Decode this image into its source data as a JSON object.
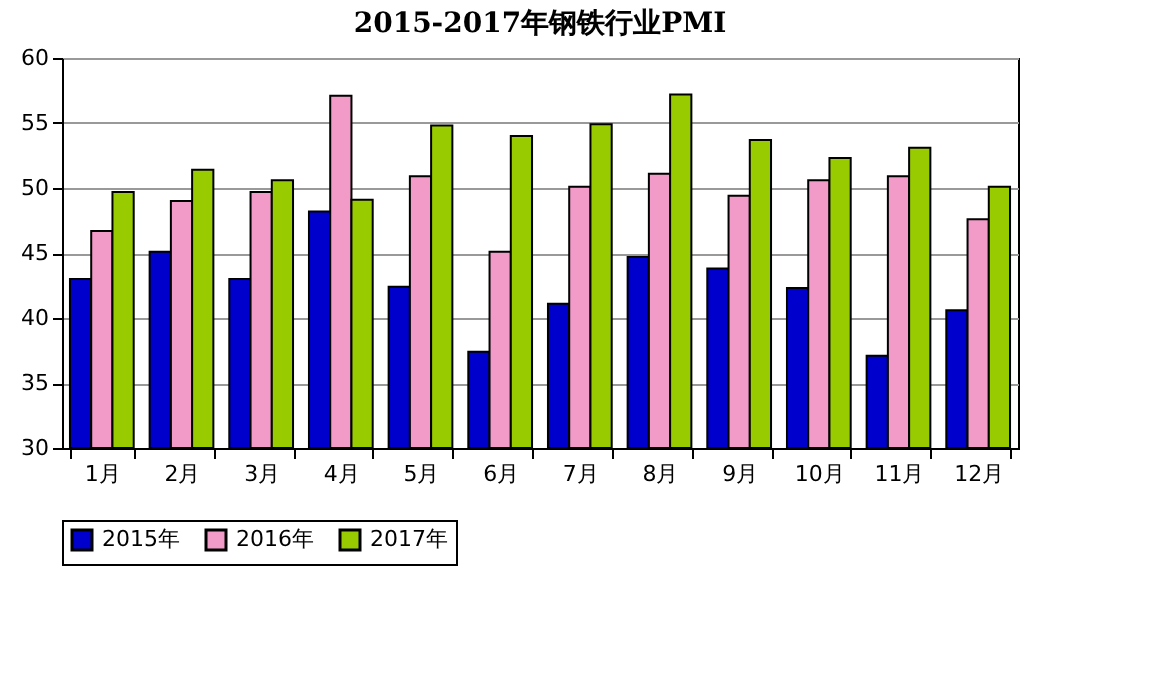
{
  "chart_data": {
    "type": "bar",
    "title": "2015-2017年钢铁行业PMI",
    "categories": [
      "1月",
      "2月",
      "3月",
      "4月",
      "5月",
      "6月",
      "7月",
      "8月",
      "9月",
      "10月",
      "11月",
      "12月"
    ],
    "series": [
      {
        "name": "2015年",
        "color": "#0000cc",
        "values": [
          43.0,
          45.1,
          43.0,
          48.2,
          42.4,
          37.4,
          41.1,
          44.7,
          43.8,
          42.3,
          37.1,
          40.6
        ]
      },
      {
        "name": "2016年",
        "color": "#f29ac8",
        "values": [
          46.7,
          49.0,
          49.7,
          57.1,
          50.9,
          45.1,
          50.1,
          51.1,
          49.4,
          50.6,
          50.9,
          47.6
        ]
      },
      {
        "name": "2017年",
        "color": "#99cc00",
        "values": [
          49.7,
          51.4,
          50.6,
          49.1,
          54.8,
          54.0,
          54.9,
          57.2,
          53.7,
          52.3,
          53.1,
          50.1
        ]
      }
    ],
    "ylim": [
      30,
      60
    ],
    "yticks": [
      30,
      35,
      40,
      45,
      50,
      55,
      60
    ],
    "grid": "y",
    "legend": "bottom"
  }
}
